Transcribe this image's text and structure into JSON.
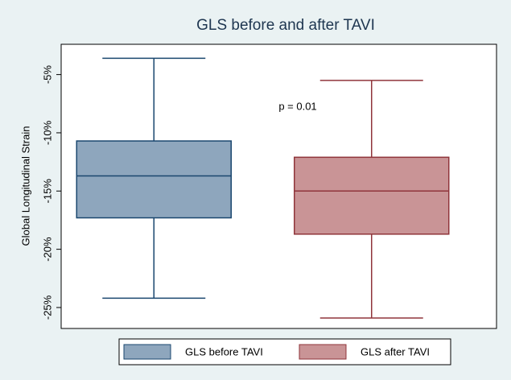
{
  "chart_data": {
    "type": "box",
    "title": "GLS before and after TAVI",
    "y_label": "Global Longitudinal Strain",
    "annotation": "p = 0.01",
    "series": [
      {
        "name": "GLS before TAVI",
        "color": "#8ea6bd",
        "edge_color": "#1a476f",
        "min": -24.2,
        "q1": -17.3,
        "median": -13.7,
        "q3": -10.7,
        "max": -3.6
      },
      {
        "name": "GLS after TAVI",
        "color": "#c99496",
        "edge_color": "#90353b",
        "min": -25.9,
        "q1": -18.7,
        "median": -15.0,
        "q3": -12.1,
        "max": -5.5
      }
    ],
    "ylim": [
      -26.8,
      -2.4
    ],
    "yticks": [
      {
        "value": -5,
        "label": "-5%"
      },
      {
        "value": -10,
        "label": "-10%"
      },
      {
        "value": -15,
        "label": "-15%"
      },
      {
        "value": -20,
        "label": "-20%"
      },
      {
        "value": -25,
        "label": "-25%"
      }
    ],
    "grid": false
  }
}
